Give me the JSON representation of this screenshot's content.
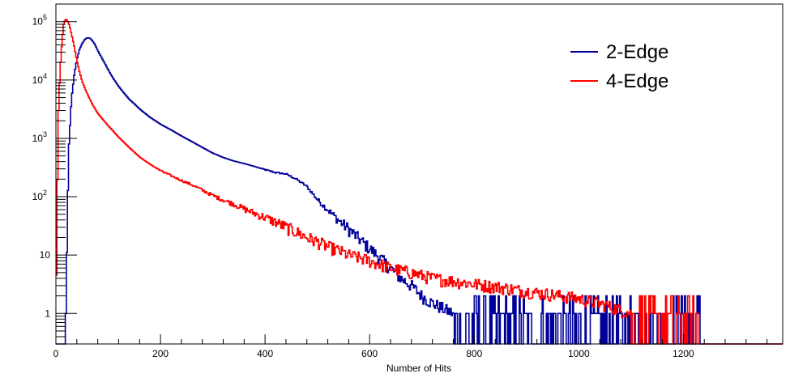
{
  "chart_data": {
    "type": "line",
    "title": "",
    "xlabel": "Number of Hits",
    "ylabel": "",
    "xlim": [
      0,
      1390
    ],
    "ylim": [
      0.3,
      200000
    ],
    "y_scale": "log",
    "grid": false,
    "legend_position": "top-right",
    "x_ticks": [
      {
        "value": 0,
        "label": "0"
      },
      {
        "value": 200,
        "label": "200"
      },
      {
        "value": 400,
        "label": "400"
      },
      {
        "value": 600,
        "label": "600"
      },
      {
        "value": 800,
        "label": "800"
      },
      {
        "value": 1000,
        "label": "1000"
      },
      {
        "value": 1200,
        "label": "1200"
      }
    ],
    "y_ticks": [
      {
        "value": 1,
        "base": "1",
        "exp": ""
      },
      {
        "value": 10,
        "base": "10",
        "exp": ""
      },
      {
        "value": 100,
        "base": "10",
        "exp": "2"
      },
      {
        "value": 1000,
        "base": "10",
        "exp": "3"
      },
      {
        "value": 10000,
        "base": "10",
        "exp": "4"
      },
      {
        "value": 100000,
        "base": "10",
        "exp": "5"
      }
    ],
    "series": [
      {
        "name": "2-Edge",
        "color": "#000099",
        "points": [
          [
            18,
            0.3
          ],
          [
            20,
            3
          ],
          [
            22,
            50
          ],
          [
            25,
            800
          ],
          [
            30,
            5000
          ],
          [
            35,
            12000
          ],
          [
            40,
            22000
          ],
          [
            45,
            33000
          ],
          [
            50,
            42000
          ],
          [
            55,
            49000
          ],
          [
            60,
            53000
          ],
          [
            65,
            52000
          ],
          [
            70,
            47000
          ],
          [
            75,
            40000
          ],
          [
            80,
            32000
          ],
          [
            90,
            22000
          ],
          [
            100,
            15000
          ],
          [
            110,
            10500
          ],
          [
            120,
            7800
          ],
          [
            130,
            6000
          ],
          [
            140,
            4700
          ],
          [
            150,
            3900
          ],
          [
            160,
            3200
          ],
          [
            170,
            2700
          ],
          [
            180,
            2300
          ],
          [
            200,
            1750
          ],
          [
            220,
            1400
          ],
          [
            240,
            1100
          ],
          [
            260,
            880
          ],
          [
            280,
            700
          ],
          [
            300,
            560
          ],
          [
            320,
            470
          ],
          [
            340,
            410
          ],
          [
            360,
            370
          ],
          [
            380,
            330
          ],
          [
            400,
            290
          ],
          [
            420,
            260
          ],
          [
            440,
            245
          ],
          [
            460,
            200
          ],
          [
            480,
            150
          ],
          [
            500,
            90
          ],
          [
            520,
            60
          ],
          [
            540,
            40
          ],
          [
            560,
            28
          ],
          [
            580,
            19
          ],
          [
            600,
            13
          ],
          [
            620,
            9
          ],
          [
            640,
            6
          ],
          [
            660,
            4
          ],
          [
            680,
            3
          ],
          [
            700,
            2
          ],
          [
            720,
            1.5
          ],
          [
            760,
            1
          ],
          [
            800,
            0.9
          ],
          [
            850,
            0.8
          ],
          [
            900,
            0.7
          ],
          [
            950,
            0.6
          ],
          [
            1000,
            0.6
          ],
          [
            1100,
            0.5
          ],
          [
            1200,
            0.4
          ],
          [
            1240,
            0.3
          ],
          [
            1390,
            0.3
          ]
        ]
      },
      {
        "name": "4-Edge",
        "color": "#ff0000",
        "points": [
          [
            0,
            0.5
          ],
          [
            2,
            50
          ],
          [
            5,
            3000
          ],
          [
            8,
            15000
          ],
          [
            12,
            50000
          ],
          [
            15,
            90000
          ],
          [
            18,
            110000
          ],
          [
            22,
            105000
          ],
          [
            26,
            85000
          ],
          [
            30,
            60000
          ],
          [
            35,
            38000
          ],
          [
            40,
            22000
          ],
          [
            45,
            14000
          ],
          [
            50,
            9500
          ],
          [
            60,
            5800
          ],
          [
            70,
            3800
          ],
          [
            80,
            2700
          ],
          [
            90,
            2100
          ],
          [
            100,
            1650
          ],
          [
            120,
            1050
          ],
          [
            140,
            700
          ],
          [
            160,
            480
          ],
          [
            180,
            360
          ],
          [
            200,
            280
          ],
          [
            220,
            230
          ],
          [
            240,
            190
          ],
          [
            260,
            160
          ],
          [
            280,
            130
          ],
          [
            300,
            105
          ],
          [
            320,
            88
          ],
          [
            340,
            75
          ],
          [
            360,
            62
          ],
          [
            380,
            52
          ],
          [
            400,
            44
          ],
          [
            420,
            37
          ],
          [
            440,
            30
          ],
          [
            460,
            25
          ],
          [
            480,
            20
          ],
          [
            500,
            17
          ],
          [
            520,
            14
          ],
          [
            540,
            12
          ],
          [
            560,
            10
          ],
          [
            580,
            9
          ],
          [
            600,
            8
          ],
          [
            640,
            6
          ],
          [
            680,
            5
          ],
          [
            720,
            4
          ],
          [
            760,
            3.6
          ],
          [
            800,
            3.2
          ],
          [
            850,
            2.8
          ],
          [
            900,
            2.4
          ],
          [
            950,
            2.1
          ],
          [
            1000,
            1.8
          ],
          [
            1050,
            1.4
          ],
          [
            1100,
            1.0
          ],
          [
            1150,
            0.7
          ],
          [
            1200,
            0.5
          ],
          [
            1240,
            0.3
          ],
          [
            1390,
            0.3
          ]
        ]
      }
    ]
  }
}
